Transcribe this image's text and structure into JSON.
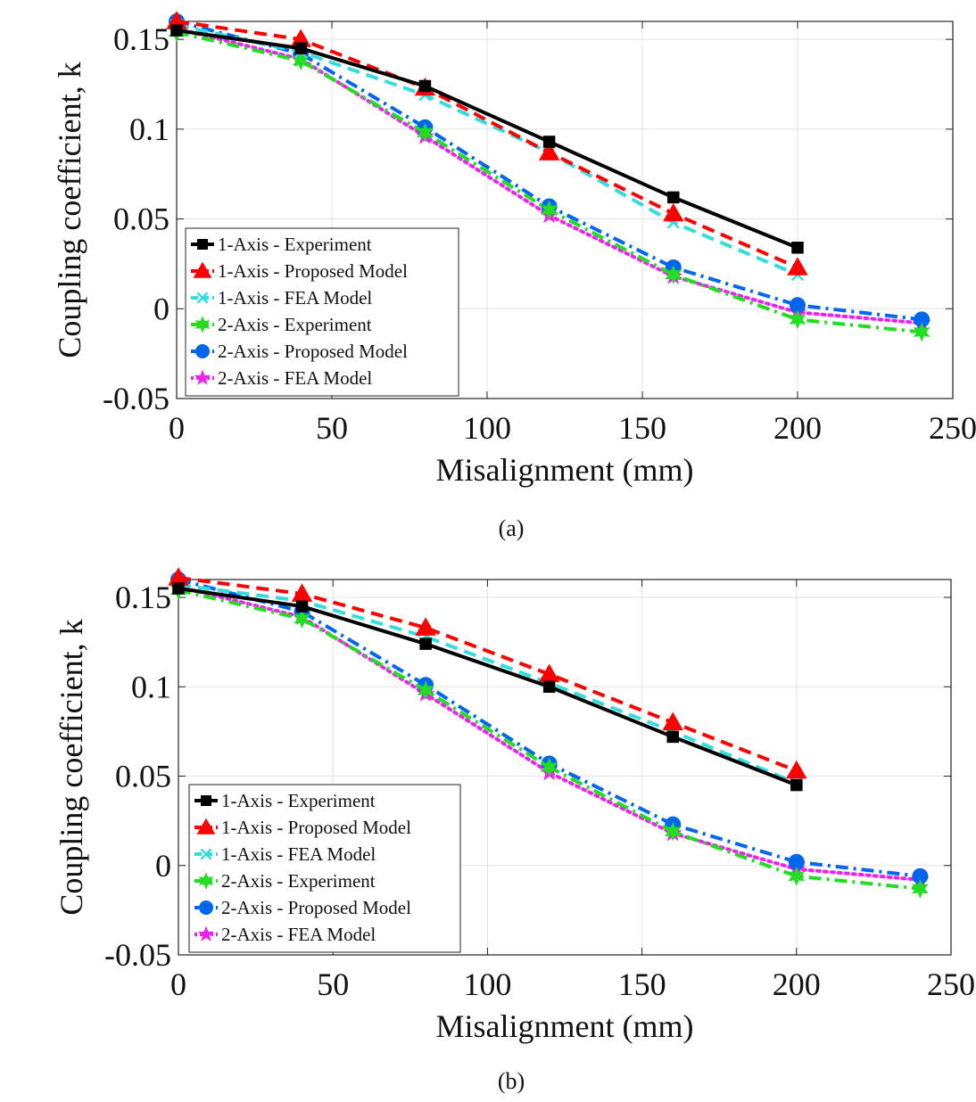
{
  "charts": [
    {
      "panel_label": "(a)",
      "chart_data": {
        "type": "line",
        "xlabel": "Misalignment (mm)",
        "ylabel": "Coupling coefficient, k",
        "xlim": [
          0,
          250
        ],
        "ylim": [
          -0.05,
          0.16
        ],
        "xticks": [
          0,
          50,
          100,
          150,
          200,
          250
        ],
        "yticks": [
          -0.05,
          0,
          0.05,
          0.1,
          0.15
        ],
        "xtick_labels": [
          "0",
          "50",
          "100",
          "150",
          "200",
          "250"
        ],
        "ytick_labels": [
          "-0.05",
          "0",
          "0.05",
          "0.1",
          "0.15"
        ],
        "grid": true,
        "legend_position": "lower-left",
        "series": [
          {
            "name": "1-Axis - Experiment",
            "color": "#000000",
            "dash": "solid",
            "marker": "square",
            "x": [
              0,
              40,
              80,
              120,
              160,
              200
            ],
            "y": [
              0.155,
              0.145,
              0.124,
              0.093,
              0.062,
              0.034
            ]
          },
          {
            "name": "1-Axis - Proposed Model",
            "color": "#ff0000",
            "dash": "dashed",
            "marker": "triangle",
            "x": [
              0,
              40,
              80,
              120,
              160,
              200
            ],
            "y": [
              0.16,
              0.15,
              0.123,
              0.087,
              0.053,
              0.023
            ]
          },
          {
            "name": "1-Axis - FEA Model",
            "color": "#33dddd",
            "dash": "dashed",
            "marker": "x",
            "x": [
              0,
              40,
              80,
              120,
              160,
              200
            ],
            "y": [
              0.158,
              0.143,
              0.119,
              0.087,
              0.048,
              0.019
            ]
          },
          {
            "name": "2-Axis - Experiment",
            "color": "#22dd22",
            "dash": "dashdot",
            "marker": "hexstar",
            "x": [
              0,
              40,
              80,
              120,
              160,
              200,
              240
            ],
            "y": [
              0.154,
              0.138,
              0.098,
              0.055,
              0.019,
              -0.006,
              -0.013
            ]
          },
          {
            "name": "2-Axis - Proposed Model",
            "color": "#0066ee",
            "dash": "dashdot",
            "marker": "circle",
            "x": [
              0,
              40,
              80,
              120,
              160,
              200,
              240
            ],
            "y": [
              0.16,
              0.142,
              0.101,
              0.057,
              0.023,
              0.002,
              -0.006
            ]
          },
          {
            "name": "2-Axis - FEA Model",
            "color": "#ee22ee",
            "dash": "dotted",
            "marker": "star",
            "x": [
              0,
              40,
              80,
              120,
              160,
              200,
              240
            ],
            "y": [
              0.156,
              0.139,
              0.096,
              0.052,
              0.018,
              -0.002,
              -0.008
            ]
          }
        ]
      }
    },
    {
      "panel_label": "(b)",
      "chart_data": {
        "type": "line",
        "xlabel": "Misalignment (mm)",
        "ylabel": "Coupling coefficient, k",
        "xlim": [
          0,
          250
        ],
        "ylim": [
          -0.05,
          0.16
        ],
        "xticks": [
          0,
          50,
          100,
          150,
          200,
          250
        ],
        "yticks": [
          -0.05,
          0,
          0.05,
          0.1,
          0.15
        ],
        "xtick_labels": [
          "0",
          "50",
          "100",
          "150",
          "200",
          "250"
        ],
        "ytick_labels": [
          "-0.05",
          "0",
          "0.05",
          "0.1",
          "0.15"
        ],
        "grid": true,
        "legend_position": "lower-left",
        "series": [
          {
            "name": "1-Axis - Experiment",
            "color": "#000000",
            "dash": "solid",
            "marker": "square",
            "x": [
              0,
              40,
              80,
              120,
              160,
              200
            ],
            "y": [
              0.155,
              0.145,
              0.124,
              0.1,
              0.072,
              0.045
            ]
          },
          {
            "name": "1-Axis - Proposed Model",
            "color": "#ff0000",
            "dash": "dashed",
            "marker": "triangle",
            "x": [
              0,
              40,
              80,
              120,
              160,
              200
            ],
            "y": [
              0.161,
              0.152,
              0.133,
              0.107,
              0.08,
              0.053
            ]
          },
          {
            "name": "1-Axis - FEA Model",
            "color": "#33dddd",
            "dash": "dashed",
            "marker": "x",
            "x": [
              0,
              40,
              80,
              120,
              160,
              200
            ],
            "y": [
              0.157,
              0.148,
              0.128,
              0.102,
              0.075,
              0.046
            ]
          },
          {
            "name": "2-Axis - Experiment",
            "color": "#22dd22",
            "dash": "dashdot",
            "marker": "hexstar",
            "x": [
              0,
              40,
              80,
              120,
              160,
              200,
              240
            ],
            "y": [
              0.154,
              0.138,
              0.098,
              0.055,
              0.019,
              -0.006,
              -0.013
            ]
          },
          {
            "name": "2-Axis - Proposed Model",
            "color": "#0066ee",
            "dash": "dashdot",
            "marker": "circle",
            "x": [
              0,
              40,
              80,
              120,
              160,
              200,
              240
            ],
            "y": [
              0.16,
              0.142,
              0.101,
              0.057,
              0.023,
              0.002,
              -0.006
            ]
          },
          {
            "name": "2-Axis - FEA Model",
            "color": "#ee22ee",
            "dash": "dotted",
            "marker": "star",
            "x": [
              0,
              40,
              80,
              120,
              160,
              200,
              240
            ],
            "y": [
              0.156,
              0.139,
              0.096,
              0.052,
              0.018,
              -0.002,
              -0.008
            ]
          }
        ]
      }
    }
  ]
}
